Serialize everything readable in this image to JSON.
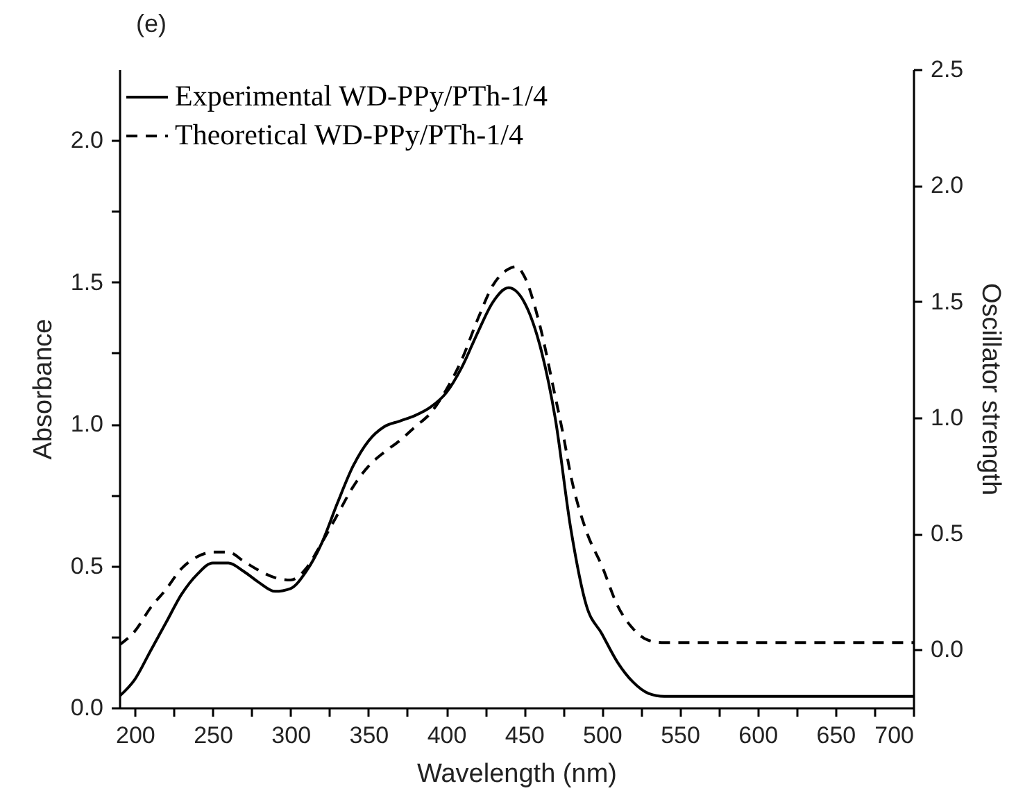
{
  "chart_data": {
    "type": "line",
    "title": "(e)",
    "xlabel": "Wavelength (nm)",
    "ylabel": "Absorbance",
    "y2label": "Oscillator strength",
    "xlim": [
      190,
      700
    ],
    "xticks": [
      200,
      {
        "value": 225,
        "label": null
      },
      250,
      {
        "value": 275,
        "label": null
      },
      300,
      {
        "value": 325,
        "label": null
      },
      350,
      {
        "value": 375,
        "label": null
      },
      400,
      {
        "value": 425,
        "label": null
      },
      450,
      {
        "value": 475,
        "label": null
      },
      500,
      {
        "value": 525,
        "label": null
      },
      550,
      {
        "value": 575,
        "label": null
      },
      600,
      {
        "value": 625,
        "label": null
      },
      650,
      {
        "value": 675,
        "label": null
      },
      700
    ],
    "ylim": [
      0,
      2.25
    ],
    "yticks": [
      {
        "value": 0,
        "label": "0.0"
      },
      {
        "value": 0.25,
        "label": null
      },
      0.5,
      {
        "value": 0.75,
        "label": null
      },
      {
        "value": 1,
        "label": "1.0"
      },
      {
        "value": 1.25,
        "label": null
      },
      1.5,
      {
        "value": 1.75,
        "label": null
      },
      {
        "value": 2,
        "label": "2.0"
      }
    ],
    "y2lim": [
      -0.25,
      2.5
    ],
    "y2ticks": [
      {
        "value": 0,
        "label": "0.0"
      },
      0.5,
      {
        "value": 1,
        "label": "1.0"
      },
      1.5,
      {
        "value": 2,
        "label": "2.0"
      },
      2.5
    ],
    "legend": "top left",
    "grid": false,
    "series": [
      {
        "name": "Experimental WD-PPy/PTh-1/4",
        "color": "#000000",
        "line_style": "solid",
        "x": [
          190,
          200,
          210,
          220,
          230,
          240,
          250,
          260,
          270,
          280,
          290,
          300,
          310,
          320,
          330,
          340,
          350,
          360,
          370,
          380,
          390,
          400,
          410,
          420,
          430,
          440,
          450,
          460,
          470,
          480,
          490,
          500,
          510,
          520,
          530,
          540,
          700
        ],
        "values": [
          0.04,
          0.1,
          0.2,
          0.3,
          0.4,
          0.47,
          0.51,
          0.51,
          0.48,
          0.44,
          0.41,
          0.42,
          0.48,
          0.58,
          0.72,
          0.85,
          0.94,
          0.99,
          1.01,
          1.03,
          1.06,
          1.11,
          1.2,
          1.32,
          1.43,
          1.48,
          1.43,
          1.28,
          1.02,
          0.63,
          0.36,
          0.26,
          0.16,
          0.09,
          0.05,
          0.04,
          0.04
        ]
      },
      {
        "name": "Theoretical WD-PPy/PTh-1/4",
        "color": "#000000",
        "line_style": "dashed",
        "axis": "y2",
        "x": [
          190,
          200,
          210,
          220,
          230,
          240,
          250,
          260,
          270,
          280,
          290,
          300,
          310,
          320,
          330,
          340,
          350,
          360,
          370,
          380,
          390,
          400,
          410,
          420,
          430,
          440,
          445,
          450,
          460,
          470,
          475,
          480,
          490,
          500,
          510,
          520,
          530,
          540,
          700
        ],
        "values": [
          0.02,
          0.08,
          0.18,
          0.26,
          0.35,
          0.4,
          0.42,
          0.42,
          0.38,
          0.34,
          0.31,
          0.3,
          0.35,
          0.46,
          0.58,
          0.7,
          0.79,
          0.85,
          0.9,
          0.96,
          1.02,
          1.12,
          1.25,
          1.42,
          1.57,
          1.64,
          1.65,
          1.61,
          1.4,
          1.09,
          0.93,
          0.75,
          0.51,
          0.36,
          0.19,
          0.09,
          0.04,
          0.03,
          0.03
        ]
      }
    ]
  }
}
